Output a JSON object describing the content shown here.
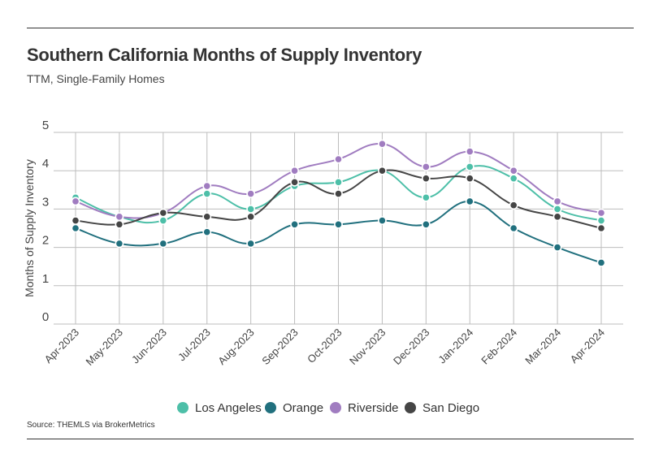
{
  "header": {
    "title": "Southern California Months of Supply Inventory",
    "subtitle": "TTM, Single-Family Homes"
  },
  "footer": {
    "source": "Source:  THEMLS via BrokerMetrics"
  },
  "chart_data": {
    "type": "line",
    "ylabel": "Months of Supply Inventory",
    "xlabel": "",
    "ylim": [
      0,
      5
    ],
    "yticks": [
      0,
      1,
      2,
      3,
      4,
      5
    ],
    "grid": true,
    "legend_position": "bottom",
    "categories": [
      "Apr-2023",
      "May-2023",
      "Jun-2023",
      "Jul-2023",
      "Aug-2023",
      "Sep-2023",
      "Oct-2023",
      "Nov-2023",
      "Dec-2023",
      "Jan-2024",
      "Feb-2024",
      "Mar-2024",
      "Apr-2024"
    ],
    "series": [
      {
        "name": "Los Angeles",
        "color": "#4dbfa8",
        "values": [
          3.3,
          2.8,
          2.7,
          3.4,
          3.0,
          3.6,
          3.7,
          4.0,
          3.3,
          4.1,
          3.8,
          3.0,
          2.7
        ]
      },
      {
        "name": "Orange",
        "color": "#21707e",
        "values": [
          2.5,
          2.1,
          2.1,
          2.4,
          2.1,
          2.6,
          2.6,
          2.7,
          2.6,
          3.2,
          2.5,
          2.0,
          1.6
        ]
      },
      {
        "name": "Riverside",
        "color": "#a07cc0",
        "values": [
          3.2,
          2.8,
          2.9,
          3.6,
          3.4,
          4.0,
          4.3,
          4.7,
          4.1,
          4.5,
          4.0,
          3.2,
          2.9
        ]
      },
      {
        "name": "San Diego",
        "color": "#454545",
        "values": [
          2.7,
          2.6,
          2.9,
          2.8,
          2.8,
          3.7,
          3.4,
          4.0,
          3.8,
          3.8,
          3.1,
          2.8,
          2.5
        ]
      }
    ]
  }
}
